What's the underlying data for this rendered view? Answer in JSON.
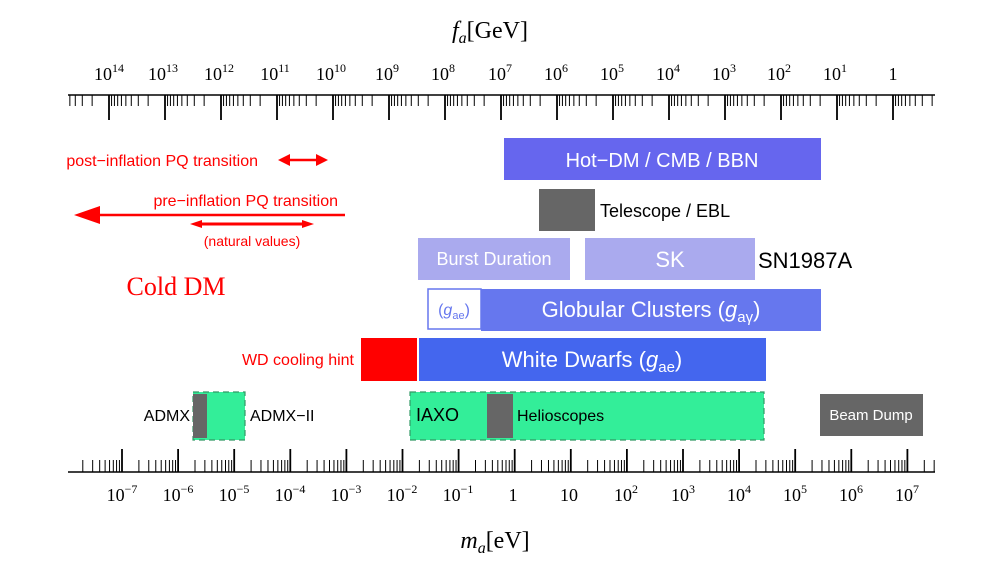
{
  "top_axis": {
    "label_var": "f",
    "label_sub": "a",
    "label_unit": "[GeV]",
    "ticks": [
      {
        "mant": "10",
        "exp": "14"
      },
      {
        "mant": "10",
        "exp": "13"
      },
      {
        "mant": "10",
        "exp": "12"
      },
      {
        "mant": "10",
        "exp": "11"
      },
      {
        "mant": "10",
        "exp": "10"
      },
      {
        "mant": "10",
        "exp": "9"
      },
      {
        "mant": "10",
        "exp": "8"
      },
      {
        "mant": "10",
        "exp": "7"
      },
      {
        "mant": "10",
        "exp": "6"
      },
      {
        "mant": "10",
        "exp": "5"
      },
      {
        "mant": "10",
        "exp": "4"
      },
      {
        "mant": "10",
        "exp": "3"
      },
      {
        "mant": "10",
        "exp": "2"
      },
      {
        "mant": "10",
        "exp": "1"
      },
      {
        "mant": "1",
        "exp": ""
      }
    ]
  },
  "bottom_axis": {
    "label_var": "m",
    "label_sub": "a",
    "label_unit": "[eV]",
    "ticks": [
      {
        "mant": "10",
        "exp": "−7"
      },
      {
        "mant": "10",
        "exp": "−6"
      },
      {
        "mant": "10",
        "exp": "−5"
      },
      {
        "mant": "10",
        "exp": "−4"
      },
      {
        "mant": "10",
        "exp": "−3"
      },
      {
        "mant": "10",
        "exp": "−2"
      },
      {
        "mant": "10",
        "exp": "−1"
      },
      {
        "mant": "1",
        "exp": ""
      },
      {
        "mant": "10",
        "exp": ""
      },
      {
        "mant": "10",
        "exp": "2"
      },
      {
        "mant": "10",
        "exp": "3"
      },
      {
        "mant": "10",
        "exp": "4"
      },
      {
        "mant": "10",
        "exp": "5"
      },
      {
        "mant": "10",
        "exp": "6"
      },
      {
        "mant": "10",
        "exp": "7"
      }
    ]
  },
  "labels": {
    "post_inflation": "post−inflation PQ transition",
    "pre_inflation": "pre−inflation PQ transition",
    "natural_values": "(natural values)",
    "cold_dm": "Cold DM",
    "hot_dm": "Hot−DM / CMB / BBN",
    "telescope": "Telescope / EBL",
    "burst_duration": "Burst Duration",
    "sk": "SK",
    "sn1987a": "SN1987A",
    "gae_small_g": "g",
    "gae_small_sub": "ae",
    "globular_text": "Globular Clusters",
    "globular_g": "g",
    "globular_sub": "aγ",
    "wd_hint": "WD cooling hint",
    "white_dwarfs_text": "White Dwarfs",
    "white_dwarfs_g": "g",
    "white_dwarfs_sub": "ae",
    "admx": "ADMX",
    "admx2": "ADMX−II",
    "iaxo": "IAXO",
    "helioscopes": "Helioscopes",
    "beam_dump": "Beam Dump"
  },
  "colors": {
    "red": "#ff0000",
    "hot_dm": "#6666ee",
    "burst": "#aaaaee",
    "globular": "#6677ee",
    "white_dwarfs": "#4466ee",
    "green": "#33ee99",
    "gray": "#666666"
  }
}
